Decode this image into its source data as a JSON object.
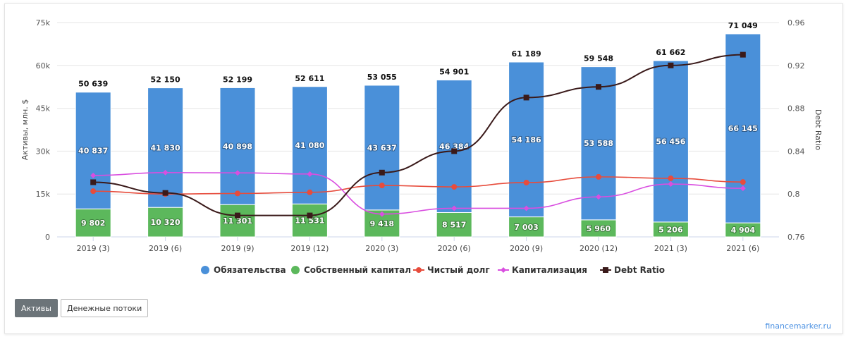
{
  "chart_data": {
    "type": "bar",
    "stacked": true,
    "categories": [
      "2019 (3)",
      "2019 (6)",
      "2019 (9)",
      "2019 (12)",
      "2020 (3)",
      "2020 (6)",
      "2020 (9)",
      "2020 (12)",
      "2021 (3)",
      "2021 (6)"
    ],
    "totals": [
      "50 639",
      "52 150",
      "52 199",
      "52 611",
      "53 055",
      "54 901",
      "61 189",
      "59 548",
      "61 662",
      "71 049"
    ],
    "series": [
      {
        "name": "Обязательства",
        "kind": "bar",
        "color": "#4a90d9",
        "values": [
          40837,
          41830,
          40898,
          41080,
          43637,
          46384,
          54186,
          53588,
          56456,
          66145
        ],
        "labels": [
          "40 837",
          "41 830",
          "40 898",
          "41 080",
          "43 637",
          "46 384",
          "54 186",
          "53 588",
          "56 456",
          "66 145"
        ]
      },
      {
        "name": "Собственный капитал",
        "kind": "bar",
        "color": "#5cb85c",
        "values": [
          9802,
          10320,
          11301,
          11531,
          9418,
          8517,
          7003,
          5960,
          5206,
          4904
        ],
        "labels": [
          "9 802",
          "10 320",
          "11 301",
          "11 531",
          "9 418",
          "8 517",
          "7 003",
          "5 960",
          "5 206",
          "4 904"
        ]
      },
      {
        "name": "Чистый долг",
        "kind": "line",
        "axis": "left",
        "color": "#e74c3c",
        "values": [
          16000,
          15000,
          15200,
          15600,
          18000,
          17500,
          19000,
          21000,
          20500,
          19200
        ]
      },
      {
        "name": "Капитализация",
        "kind": "line",
        "axis": "left",
        "color": "#d94fe0",
        "values": [
          21500,
          22500,
          22400,
          22000,
          8000,
          10000,
          10000,
          14000,
          18500,
          17000
        ]
      },
      {
        "name": "Debt Ratio",
        "kind": "line",
        "axis": "right",
        "color": "#3a1a1a",
        "values": [
          0.811,
          0.801,
          0.78,
          0.78,
          0.82,
          0.84,
          0.89,
          0.9,
          0.92,
          0.93
        ]
      }
    ],
    "y_left": {
      "label": "Активы, млн. $",
      "ticks": [
        "0",
        "15k",
        "30k",
        "45k",
        "60k",
        "75k"
      ],
      "range": [
        0,
        75000
      ]
    },
    "y_right": {
      "label": "Debt Ratio",
      "ticks": [
        "0.76",
        "0.8",
        "0.84",
        "0.88",
        "0.92",
        "0.96"
      ],
      "range": [
        0.76,
        0.96
      ]
    },
    "grid": true,
    "legend_position": "bottom"
  },
  "buttons": {
    "assets": "Активы",
    "cashflows": "Денежные потоки"
  },
  "credit": "financemarker.ru"
}
